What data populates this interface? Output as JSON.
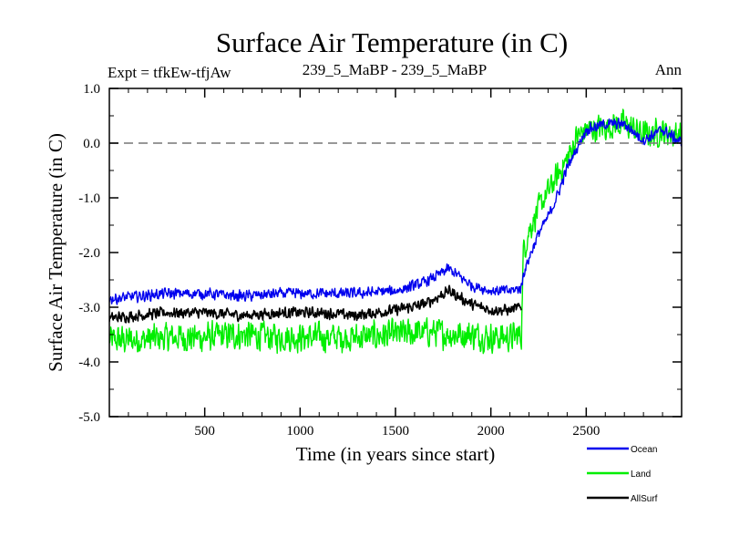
{
  "chart_data": {
    "type": "line",
    "title": "Surface Air Temperature (in C)",
    "left_label": "Expt = tfkEw-tfjAw",
    "center_label": "239_5_MaBP - 239_5_MaBP",
    "right_label": "Ann",
    "xlabel": "Time (in years since start)",
    "ylabel": "Surface Air Temperature (in C)",
    "xlim": [
      0,
      3000
    ],
    "ylim": [
      -5.0,
      1.0
    ],
    "xticks": [
      500,
      1000,
      1500,
      2000,
      2500
    ],
    "xtick_labels": [
      "500",
      "1000",
      "1500",
      "2000",
      "2500"
    ],
    "yticks": [
      -5.0,
      -4.0,
      -3.0,
      -2.0,
      -1.0,
      0.0,
      1.0
    ],
    "ytick_labels": [
      "-5.0",
      "-4.0",
      "-3.0",
      "-2.0",
      "-1.0",
      "0.0",
      "1.0"
    ],
    "reference_line": 0.0,
    "grid": false,
    "legend_position": "bottom-right, outside plot",
    "series": [
      {
        "name": "Land",
        "color": "#00ee00",
        "x": [
          0,
          150,
          300,
          500,
          700,
          900,
          1100,
          1300,
          1500,
          1700,
          1800,
          1900,
          2000,
          2100,
          2160,
          2170,
          2200,
          2250,
          2300,
          2350,
          2400,
          2450,
          2500,
          2600,
          2700,
          2800,
          2900,
          3000
        ],
        "y": [
          -3.6,
          -3.6,
          -3.55,
          -3.55,
          -3.5,
          -3.55,
          -3.55,
          -3.55,
          -3.5,
          -3.45,
          -3.5,
          -3.5,
          -3.55,
          -3.55,
          -3.5,
          -2.0,
          -1.6,
          -1.2,
          -0.9,
          -0.6,
          -0.3,
          0.1,
          0.25,
          0.3,
          0.35,
          0.15,
          0.2,
          0.15
        ],
        "noise_amplitude": [
          0.32,
          0.3
        ]
      },
      {
        "name": "AllSurf",
        "color": "#000000",
        "x": [
          0,
          150,
          300,
          500,
          700,
          900,
          1100,
          1300,
          1500,
          1650,
          1780,
          1900,
          2000,
          2100,
          2160
        ],
        "y": [
          -3.2,
          -3.15,
          -3.1,
          -3.1,
          -3.15,
          -3.1,
          -3.1,
          -3.15,
          -3.05,
          -2.95,
          -2.7,
          -2.95,
          -3.05,
          -3.05,
          -3.0
        ],
        "noise_amplitude": [
          0.12,
          0.1
        ]
      },
      {
        "name": "Ocean",
        "color": "#0000ee",
        "x": [
          0,
          150,
          300,
          500,
          700,
          900,
          1100,
          1300,
          1500,
          1650,
          1780,
          1900,
          2000,
          2100,
          2160,
          2170,
          2200,
          2250,
          2300,
          2350,
          2400,
          2450,
          2500,
          2600,
          2700,
          2800,
          2900,
          3000
        ],
        "y": [
          -2.85,
          -2.8,
          -2.75,
          -2.75,
          -2.8,
          -2.75,
          -2.75,
          -2.75,
          -2.7,
          -2.55,
          -2.3,
          -2.6,
          -2.7,
          -2.7,
          -2.65,
          -2.4,
          -2.1,
          -1.65,
          -1.35,
          -0.95,
          -0.45,
          -0.1,
          0.25,
          0.35,
          0.35,
          0.05,
          0.25,
          0.0
        ],
        "noise_amplitude": [
          0.12,
          0.12
        ]
      }
    ],
    "legend": [
      {
        "name": "Ocean",
        "color": "#0000ee"
      },
      {
        "name": "Land",
        "color": "#00ee00"
      },
      {
        "name": "AllSurf",
        "color": "#000000"
      }
    ]
  }
}
